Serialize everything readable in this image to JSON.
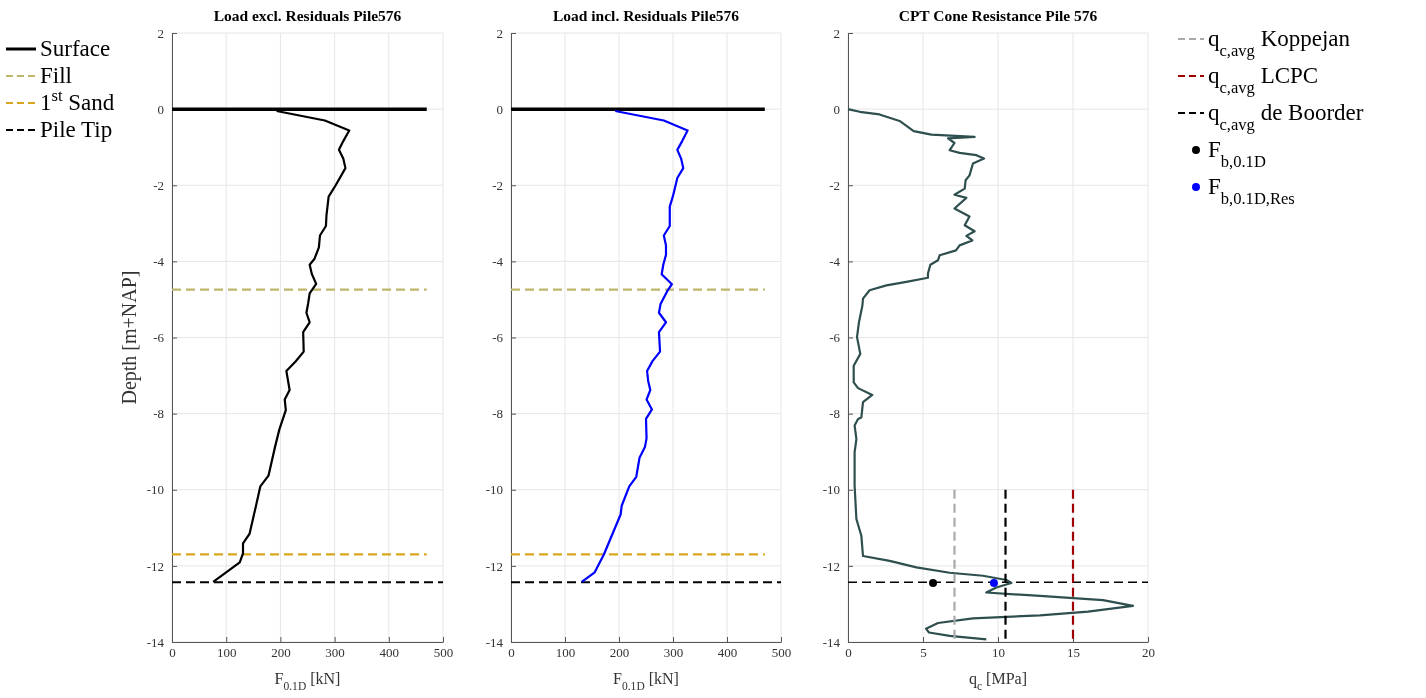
{
  "chart_data": [
    {
      "type": "line",
      "title": "Load excl. Residuals Pile576",
      "xlabel": "F$_{0.1D}$ [kN]",
      "ylabel": "Depth [m+NAP]",
      "xlim": [
        0,
        500
      ],
      "xticks": [
        0,
        100,
        200,
        300,
        400,
        500
      ],
      "ylim": [
        -14,
        2
      ],
      "yticks": [
        -14,
        -12,
        -10,
        -8,
        -6,
        -4,
        -2,
        0,
        2
      ],
      "grid": true,
      "legend": "left",
      "series": [
        {
          "name": "Surface",
          "color": "#000000",
          "line_style": "solid",
          "x": [
            0,
            470
          ],
          "values": [
            0,
            0
          ]
        },
        {
          "name": "Fill",
          "color": "#bdb76b",
          "line_style": "dashed",
          "x": [
            0,
            470
          ],
          "values": [
            -4.74,
            -4.74
          ]
        },
        {
          "name": "1$^{st}$ Sand",
          "color": "#daa520",
          "line_style": "dashed",
          "x": [
            0,
            470
          ],
          "values": [
            -11.7,
            -11.7
          ]
        },
        {
          "name": "Pile Tip",
          "color": "#000000",
          "line_style": "dashed",
          "x": [
            0,
            500
          ],
          "values": [
            -12.43,
            -12.43
          ]
        },
        {
          "color": "#000000",
          "line_style": "solid",
          "x": [
            193,
            282,
            327,
            316,
            308,
            316,
            320,
            302,
            289,
            285,
            284,
            273,
            271,
            263,
            254,
            258,
            266,
            254,
            251,
            248,
            254,
            242,
            243,
            228,
            211,
            217,
            208,
            210,
            198,
            190,
            178,
            163,
            155,
            143,
            131,
            131,
            125,
            76
          ],
          "values": [
            -0.05,
            -0.3,
            -0.56,
            -0.84,
            -1.07,
            -1.3,
            -1.55,
            -2.0,
            -2.3,
            -2.79,
            -3.07,
            -3.32,
            -3.63,
            -3.93,
            -4.09,
            -4.33,
            -4.59,
            -4.84,
            -5.12,
            -5.35,
            -5.6,
            -5.86,
            -6.37,
            -6.63,
            -6.88,
            -7.38,
            -7.63,
            -7.91,
            -8.42,
            -8.88,
            -9.63,
            -9.91,
            -10.42,
            -11.16,
            -11.41,
            -11.67,
            -11.91,
            -12.42
          ]
        }
      ]
    },
    {
      "type": "line",
      "title": "Load incl. Residuals Pile576",
      "xlabel": "F$_{0.1D}$ [kN]",
      "xlim": [
        0,
        500
      ],
      "xticks": [
        0,
        100,
        200,
        300,
        400,
        500
      ],
      "ylim": [
        -14,
        2
      ],
      "yticks": [
        -14,
        -12,
        -10,
        -8,
        -6,
        -4,
        -2,
        0,
        2
      ],
      "grid": true,
      "series": [
        {
          "color": "#000000",
          "line_style": "solid",
          "x": [
            0,
            470
          ],
          "values": [
            0,
            0
          ]
        },
        {
          "color": "#bdb76b",
          "line_style": "dashed",
          "x": [
            0,
            470
          ],
          "values": [
            -4.74,
            -4.74
          ]
        },
        {
          "color": "#daa520",
          "line_style": "dashed",
          "x": [
            0,
            470
          ],
          "values": [
            -11.7,
            -11.7
          ]
        },
        {
          "color": "#000000",
          "line_style": "dashed",
          "x": [
            0,
            500
          ],
          "values": [
            -12.43,
            -12.43
          ]
        },
        {
          "color": "#0000ff",
          "line_style": "solid",
          "x": [
            193,
            283,
            327,
            317,
            308,
            315,
            319,
            308,
            300,
            294,
            294,
            283,
            287,
            287,
            282,
            279,
            298,
            289,
            277,
            274,
            287,
            274,
            276,
            262,
            252,
            254,
            258,
            251,
            261,
            250,
            251,
            248,
            238,
            232,
            219,
            205,
            203,
            172,
            155,
            131
          ],
          "values": [
            -0.05,
            -0.3,
            -0.56,
            -0.84,
            -1.07,
            -1.3,
            -1.55,
            -1.81,
            -2.28,
            -2.56,
            -3.07,
            -3.32,
            -3.58,
            -3.83,
            -4.09,
            -4.34,
            -4.6,
            -4.79,
            -5.12,
            -5.35,
            -5.6,
            -5.86,
            -6.37,
            -6.62,
            -6.88,
            -7.14,
            -7.38,
            -7.63,
            -7.89,
            -8.14,
            -8.65,
            -8.88,
            -9.16,
            -9.66,
            -9.91,
            -10.42,
            -10.65,
            -11.7,
            -12.17,
            -12.42
          ]
        }
      ]
    },
    {
      "type": "line",
      "title": "CPT Cone Resistance Pile 576",
      "xlabel": "q$_{c}$ [MPa]",
      "xlim": [
        0,
        20
      ],
      "xticks": [
        0,
        5,
        10,
        15,
        20
      ],
      "ylim": [
        -14,
        2
      ],
      "yticks": [
        -14,
        -12,
        -10,
        -8,
        -6,
        -4,
        -2,
        0,
        2
      ],
      "grid": true,
      "legend": "right",
      "ref_lines": [
        {
          "axis": "y",
          "value": -12.43,
          "color": "#000000",
          "line_style": "dashed"
        }
      ],
      "series": [
        {
          "color": "#2f4f4f",
          "line_style": "solid",
          "x": [
            0,
            0.78,
            2.1,
            3.44,
            4.38,
            5.56,
            8.44,
            6.67,
            7.1,
            6.78,
            7.44,
            8.56,
            9.07,
            8.33,
            8.1,
            7.84,
            7.78,
            7.1,
            7.89,
            7.1,
            8.1,
            7.78,
            8.44,
            7.89,
            8.29,
            7.44,
            7.2,
            6.11,
            6.0,
            5.49,
            5.33,
            5.33,
            3.89,
            2.56,
            1.44,
            1.0,
            0.96,
            0.73,
            0.6,
            0.82,
            0.38,
            0.38,
            0.67,
            1.62,
            1.0,
            0.89,
            0.67,
            0.44,
            0.56,
            0.44,
            0.44,
            0.56,
            0.89,
            1.0,
            2.78,
            4.56,
            6.78,
            9.0,
            10.56,
            10.89,
            9.89,
            9.22,
            12.8,
            17,
            19,
            16,
            12.8,
            8.33,
            6,
            5.2,
            5.4,
            6.78,
            9.22
          ],
          "values": [
            0,
            -0.07,
            -0.14,
            -0.31,
            -0.58,
            -0.67,
            -0.73,
            -0.77,
            -0.89,
            -1.08,
            -1.15,
            -1.21,
            -1.3,
            -1.43,
            -1.74,
            -1.87,
            -2.09,
            -2.25,
            -2.33,
            -2.61,
            -2.82,
            -3.05,
            -3.21,
            -3.33,
            -3.45,
            -3.58,
            -3.71,
            -3.84,
            -3.97,
            -4.09,
            -4.32,
            -4.43,
            -4.54,
            -4.63,
            -4.76,
            -4.98,
            -5.16,
            -5.6,
            -5.99,
            -6.43,
            -6.74,
            -7.18,
            -7.33,
            -7.51,
            -7.7,
            -8.1,
            -8.14,
            -8.31,
            -8.67,
            -9.02,
            -9.89,
            -10.77,
            -11.21,
            -11.74,
            -11.87,
            -12.04,
            -12.18,
            -12.26,
            -12.37,
            -12.45,
            -12.57,
            -12.7,
            -12.79,
            -12.9,
            -13.05,
            -13.2,
            -13.3,
            -13.38,
            -13.5,
            -13.65,
            -13.75,
            -13.84,
            -13.93
          ]
        },
        {
          "name": "q$_{c,avg}$ Koppejan",
          "color": "#aaaaaa",
          "line_style": "dashed",
          "x": [
            7.1,
            7.1
          ],
          "values": [
            -10,
            -14
          ]
        },
        {
          "name": "q$_{c,avg}$ LCPC",
          "color": "#a00000",
          "line_style": "dashed",
          "x": [
            15,
            15
          ],
          "values": [
            -10,
            -14
          ]
        },
        {
          "name": "q$_{c,avg}$ de Boorder",
          "color": "#000000",
          "line_style": "dashed",
          "x": [
            10.5,
            10.5
          ],
          "values": [
            -10,
            -14
          ]
        },
        {
          "type": "scatter",
          "name": "F$_{b,0.1D}$",
          "color": "#000000",
          "marker": "circle",
          "x": [
            5.67
          ],
          "values": [
            -12.45
          ]
        },
        {
          "type": "scatter",
          "name": "F$_{b,0.1D,Res}$",
          "color": "#0000ff",
          "marker": "circle",
          "x": [
            9.73
          ],
          "values": [
            -12.45
          ]
        }
      ]
    }
  ]
}
